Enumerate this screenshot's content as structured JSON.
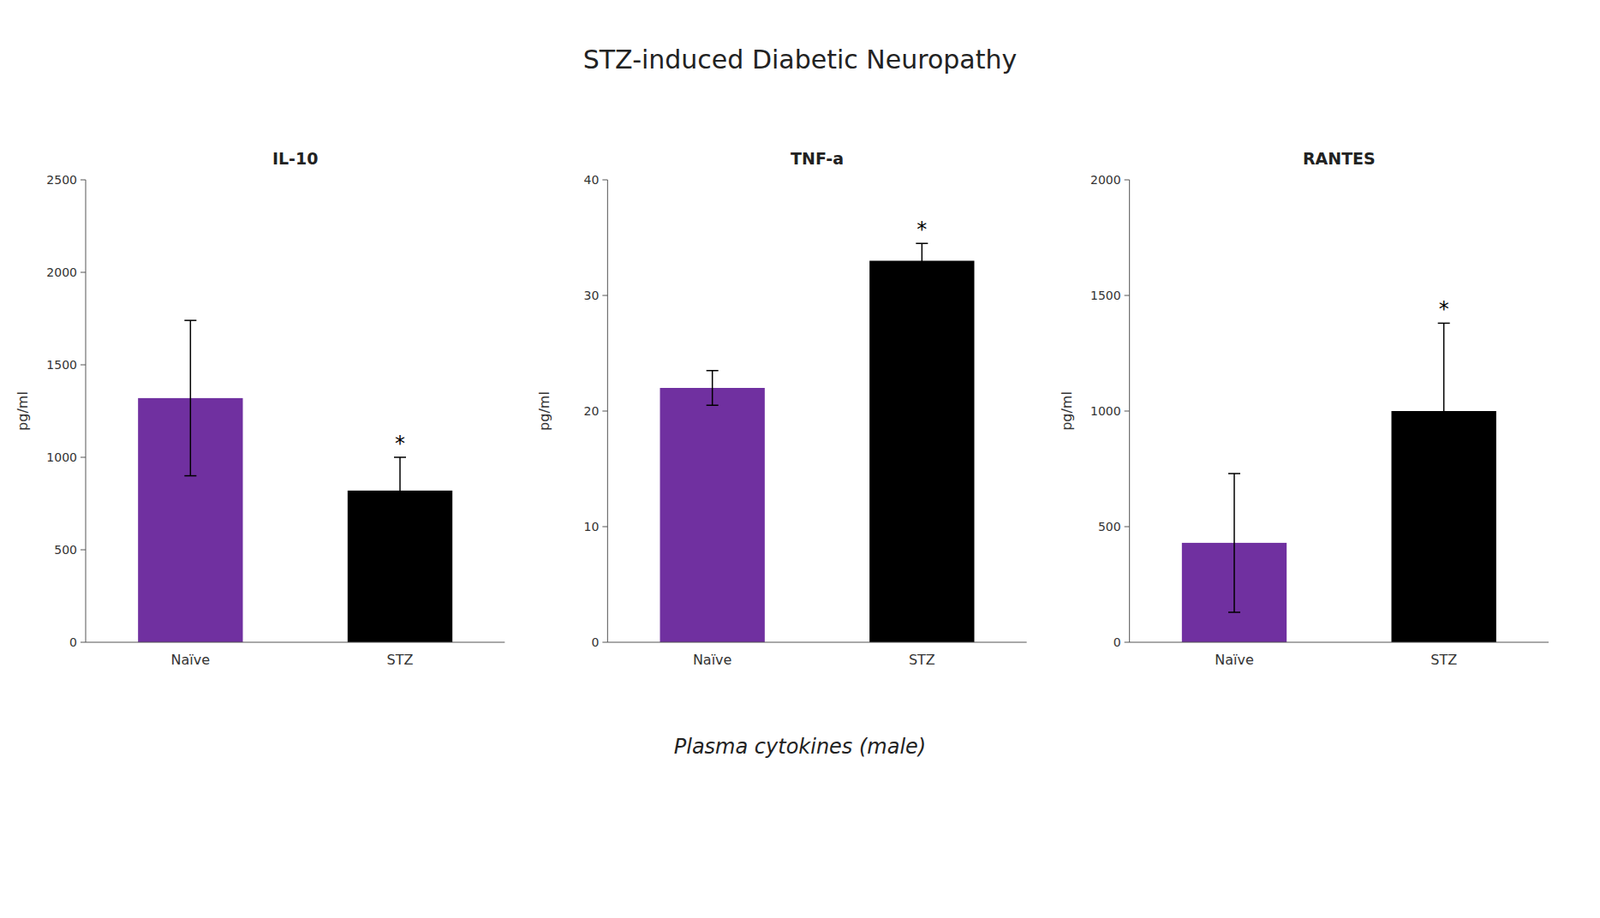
{
  "title": "STZ-induced Diabetic Neuropathy",
  "subtitle": "Plasma cytokines (male)",
  "chart_data": [
    {
      "type": "bar",
      "title": "IL-10",
      "ylabel": "pg/ml",
      "categories": [
        "Naïve",
        "STZ"
      ],
      "values": [
        1320,
        820
      ],
      "errors": [
        420,
        180
      ],
      "colors": [
        "#7030a0",
        "#000000"
      ],
      "ylim": [
        0,
        2500
      ],
      "yticks": [
        0,
        500,
        1000,
        1500,
        2000,
        2500
      ],
      "grid": false,
      "annotations": [
        {
          "text": "*",
          "category": "STZ"
        }
      ]
    },
    {
      "type": "bar",
      "title": "TNF-a",
      "ylabel": "pg/ml",
      "categories": [
        "Naïve",
        "STZ"
      ],
      "values": [
        22,
        33
      ],
      "errors": [
        1.5,
        1.5
      ],
      "colors": [
        "#7030a0",
        "#000000"
      ],
      "ylim": [
        0,
        40
      ],
      "yticks": [
        0,
        10,
        20,
        30,
        40
      ],
      "grid": false,
      "annotations": [
        {
          "text": "*",
          "category": "STZ"
        }
      ]
    },
    {
      "type": "bar",
      "title": "RANTES",
      "ylabel": "pg/ml",
      "categories": [
        "Naïve",
        "STZ"
      ],
      "values": [
        430,
        1000
      ],
      "errors": [
        300,
        380
      ],
      "colors": [
        "#7030a0",
        "#000000"
      ],
      "ylim": [
        0,
        2000
      ],
      "yticks": [
        0,
        500,
        1000,
        1500,
        2000
      ],
      "grid": false,
      "annotations": [
        {
          "text": "*",
          "category": "STZ"
        }
      ]
    }
  ]
}
